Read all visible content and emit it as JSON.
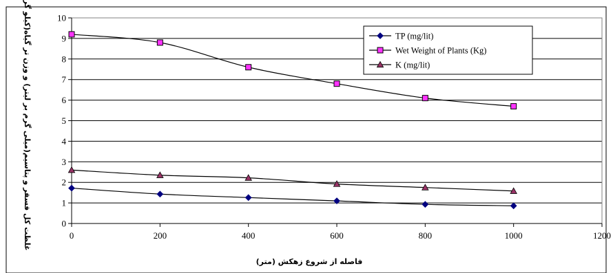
{
  "chart_data": {
    "type": "line",
    "title": "",
    "xlabel": "فاصله از شروع زهکش (متر)",
    "ylabel": "غلظت کل فسفر و پتاسیم(میلی گرم بر لیتر) و وزن تر گیاه(کیلو گرم)",
    "xlim": [
      0,
      1200
    ],
    "ylim": [
      0,
      10
    ],
    "xticks": [
      0,
      200,
      400,
      600,
      800,
      1000,
      1200
    ],
    "xtick_labels": [
      "0",
      "200",
      "400",
      "600",
      "800",
      "1000",
      "1200"
    ],
    "yticks": [
      0,
      1,
      2,
      3,
      4,
      5,
      6,
      7,
      8,
      9,
      10
    ],
    "ytick_labels": [
      "0",
      "1",
      "2",
      "3",
      "4",
      "5",
      "6",
      "7",
      "8",
      "9",
      "10"
    ],
    "grid": "horizontal",
    "legend_position": "top-right",
    "x": [
      0,
      200,
      400,
      600,
      800,
      1000
    ],
    "series": [
      {
        "name": "TP (mg/lit)",
        "marker": "diamond",
        "color": "#000080",
        "values": [
          1.72,
          1.43,
          1.26,
          1.1,
          0.93,
          0.86
        ]
      },
      {
        "name": "Wet Weight of Plants (Kg)",
        "marker": "square",
        "color": "#ff33ff",
        "values": [
          9.2,
          8.8,
          7.6,
          6.8,
          6.1,
          5.7
        ]
      },
      {
        "name": "K  (mg/lit)",
        "marker": "triangle",
        "color": "#993366",
        "values": [
          2.6,
          2.35,
          2.22,
          1.92,
          1.75,
          1.58
        ]
      }
    ]
  }
}
